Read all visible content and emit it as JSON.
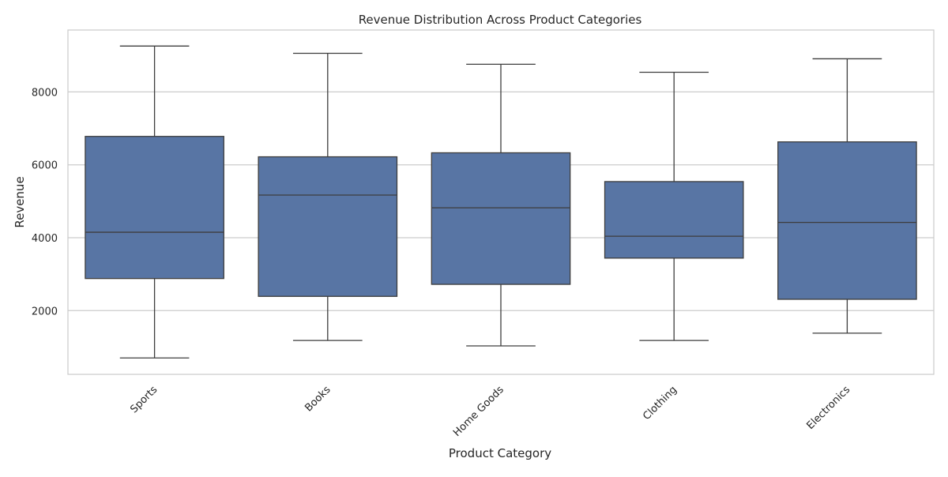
{
  "chart_data": {
    "type": "box",
    "title": "Revenue Distribution Across Product Categories",
    "xlabel": "Product Category",
    "ylabel": "Revenue",
    "categories": [
      "Sports",
      "Books",
      "Home Goods",
      "Clothing",
      "Electronics"
    ],
    "boxes": [
      {
        "category": "Sports",
        "min": 700,
        "q1": 2880,
        "median": 4150,
        "q3": 6780,
        "max": 9260
      },
      {
        "category": "Books",
        "min": 1180,
        "q1": 2390,
        "median": 5170,
        "q3": 6220,
        "max": 9060
      },
      {
        "category": "Home Goods",
        "min": 1030,
        "q1": 2720,
        "median": 4820,
        "q3": 6330,
        "max": 8760
      },
      {
        "category": "Clothing",
        "min": 1180,
        "q1": 3440,
        "median": 4040,
        "q3": 5540,
        "max": 8540
      },
      {
        "category": "Electronics",
        "min": 1380,
        "q1": 2310,
        "median": 4420,
        "q3": 6630,
        "max": 8910
      }
    ],
    "y_ticks": [
      2000,
      4000,
      6000,
      8000
    ],
    "y_tick_labels": [
      "2000",
      "4000",
      "6000",
      "8000"
    ],
    "ylim": [
      250,
      9700
    ],
    "grid": "horizontal",
    "colors": {
      "box_fill": "#5875a4",
      "line": "#3d3d3d",
      "grid": "#cccccc",
      "frame": "#cccccc"
    }
  }
}
